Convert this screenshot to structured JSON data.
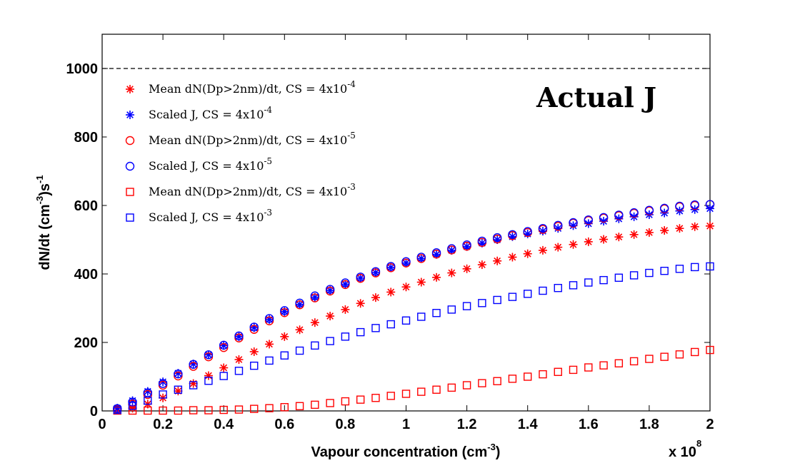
{
  "chart_data": {
    "type": "scatter",
    "title": "",
    "xlabel": "Vapour concentration (cm",
    "xlabel_sup": "-3",
    "xlabel_end": ")",
    "ylabel": "dN/dt (cm",
    "ylabel_sup": "-3",
    "ylabel_mid": ")s",
    "ylabel_sup2": "-1",
    "x_multiplier": "x 10",
    "x_multiplier_exp": "8",
    "xlim": [
      0,
      2
    ],
    "ylim": [
      0,
      1100
    ],
    "x_ticks": [
      0,
      0.2,
      0.4,
      0.6,
      0.8,
      1,
      1.2,
      1.4,
      1.6,
      1.8,
      2
    ],
    "x_tick_labels": [
      "0",
      "0.2",
      "0.4",
      "0.6",
      "0.8",
      "1",
      "1.2",
      "1.4",
      "1.6",
      "1.8",
      "2"
    ],
    "y_ticks": [
      0,
      200,
      400,
      600,
      800,
      1000
    ],
    "y_tick_labels": [
      "0",
      "200",
      "400",
      "600",
      "800",
      "1000"
    ],
    "reference_line": {
      "y": 1000,
      "style": "dashed",
      "color": "#000000"
    },
    "grid": false,
    "legend_position": "top-left",
    "annotation": "Actual J",
    "x": [
      0.05,
      0.1,
      0.15,
      0.2,
      0.25,
      0.3,
      0.35,
      0.4,
      0.45,
      0.5,
      0.55,
      0.6,
      0.65,
      0.7,
      0.75,
      0.8,
      0.85,
      0.9,
      0.95,
      1.0,
      1.05,
      1.1,
      1.15,
      1.2,
      1.25,
      1.3,
      1.35,
      1.4,
      1.45,
      1.5,
      1.55,
      1.6,
      1.65,
      1.7,
      1.75,
      1.8,
      1.85,
      1.9,
      1.95,
      2.0
    ],
    "series": [
      {
        "name": "Mean dN(Dp>2nm)/dt, CS = 4x10",
        "name_sup": "-4",
        "marker": "asterisk",
        "color": "#ff0000",
        "values": [
          3,
          8,
          20,
          38,
          58,
          80,
          103,
          126,
          150,
          173,
          195,
          217,
          237,
          258,
          277,
          296,
          314,
          331,
          347,
          362,
          376,
          390,
          403,
          415,
          427,
          438,
          449,
          459,
          469,
          478,
          486,
          494,
          501,
          508,
          515,
          521,
          527,
          533,
          538,
          540
        ]
      },
      {
        "name": "Scaled J, CS = 4x10",
        "name_sup": "-4",
        "marker": "asterisk",
        "color": "#0000ff",
        "values": [
          8,
          30,
          57,
          85,
          110,
          137,
          164,
          191,
          217,
          243,
          267,
          290,
          311,
          332,
          352,
          370,
          388,
          404,
          419,
          432,
          445,
          457,
          469,
          480,
          490,
          500,
          509,
          517,
          525,
          533,
          541,
          547,
          554,
          561,
          567,
          573,
          578,
          584,
          588,
          591
        ]
      },
      {
        "name": "Mean dN(Dp>2nm)/dt, CS = 4x10",
        "name_sup": "-5",
        "marker": "circle",
        "color": "#ff0000",
        "values": [
          5,
          20,
          48,
          75,
          102,
          130,
          158,
          185,
          213,
          238,
          263,
          287,
          310,
          330,
          350,
          369,
          387,
          403,
          418,
          432,
          445,
          458,
          470,
          481,
          492,
          502,
          512,
          521,
          530,
          539,
          548,
          556,
          563,
          570,
          577,
          584,
          590,
          596,
          600,
          603
        ]
      },
      {
        "name": "Scaled J, CS = 4x10",
        "name_sup": "-5",
        "marker": "circle",
        "color": "#0000ff",
        "values": [
          7,
          26,
          53,
          80,
          108,
          136,
          164,
          192,
          219,
          245,
          270,
          293,
          315,
          336,
          355,
          374,
          391,
          407,
          422,
          436,
          449,
          462,
          474,
          485,
          496,
          506,
          515,
          524,
          533,
          542,
          550,
          558,
          565,
          572,
          579,
          586,
          592,
          598,
          602,
          603
        ]
      },
      {
        "name": "Mean dN(Dp>2nm)/dt, CS = 4x10",
        "name_sup": "-3",
        "marker": "square",
        "color": "#ff0000",
        "values": [
          1,
          1,
          1,
          1,
          1,
          2,
          2,
          3,
          4,
          6,
          8,
          11,
          14,
          18,
          23,
          28,
          33,
          38,
          44,
          50,
          56,
          62,
          68,
          75,
          81,
          87,
          94,
          100,
          107,
          114,
          120,
          127,
          133,
          139,
          145,
          152,
          158,
          165,
          172,
          178
        ]
      },
      {
        "name": "Scaled J, CS = 4x10",
        "name_sup": "-3",
        "marker": "square",
        "color": "#0000ff",
        "values": [
          3,
          15,
          30,
          48,
          62,
          75,
          88,
          102,
          117,
          132,
          147,
          162,
          176,
          191,
          204,
          217,
          230,
          242,
          253,
          264,
          275,
          286,
          296,
          306,
          315,
          324,
          333,
          342,
          351,
          359,
          367,
          375,
          382,
          389,
          396,
          403,
          409,
          415,
          420,
          422
        ]
      }
    ]
  }
}
